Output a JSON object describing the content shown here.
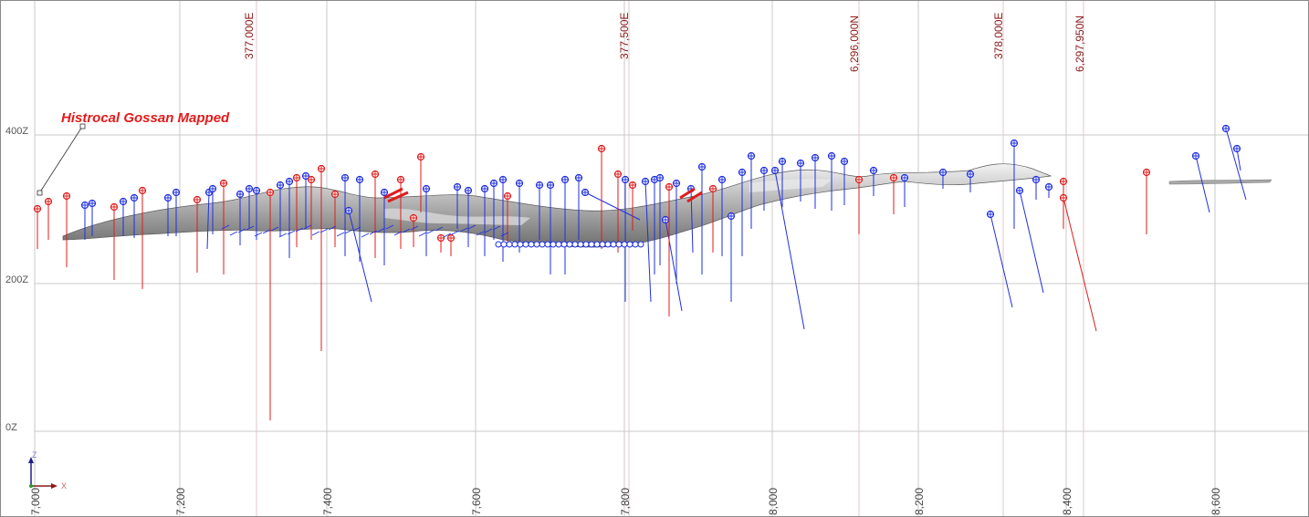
{
  "view": {
    "annotation": "Histrocal Gossan Mapped",
    "elevation_labels": [
      "400Z",
      "200Z",
      "0Z"
    ],
    "easting_labels": [
      "377,000E",
      "377,500E",
      "378,000E"
    ],
    "northing_labels": [
      "6,296,000N",
      "6,297,950N"
    ],
    "distance_labels": [
      "7,000",
      "7,200",
      "7,400",
      "7,600",
      "7,800",
      "8,000",
      "8,200",
      "8,400",
      "8,600"
    ],
    "axis_triad": {
      "z": "Z",
      "x": "X"
    },
    "colors": {
      "hole_blue": "#1f2fe0",
      "hole_red": "#e01b1b",
      "surface": "#9a9a9a",
      "coord_text": "#8b1a1a",
      "annotation": "#e31b1b"
    }
  }
}
